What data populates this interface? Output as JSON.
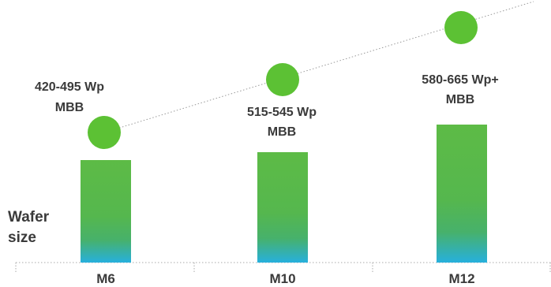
{
  "chart_data": {
    "type": "bar",
    "categories": [
      "M6",
      "M10",
      "M12"
    ],
    "values": [
      130,
      140,
      175
    ],
    "power_labels": [
      [
        "420-495  Wp",
        "MBB"
      ],
      [
        "515-545  Wp",
        "MBB"
      ],
      [
        "580-665  Wp+",
        "MBB"
      ]
    ],
    "ylabel_lines": [
      "Wafer",
      "size"
    ],
    "colors": {
      "bar_top": "#5dbb46",
      "bar_mid": "#4db35a",
      "bar_bottom": "#27b0dd",
      "marker": "#5cc134",
      "trend": "#9a9a9a",
      "axis": "#aaaaaa",
      "text": "#3a3a3a"
    },
    "trend_line": "dotted"
  }
}
